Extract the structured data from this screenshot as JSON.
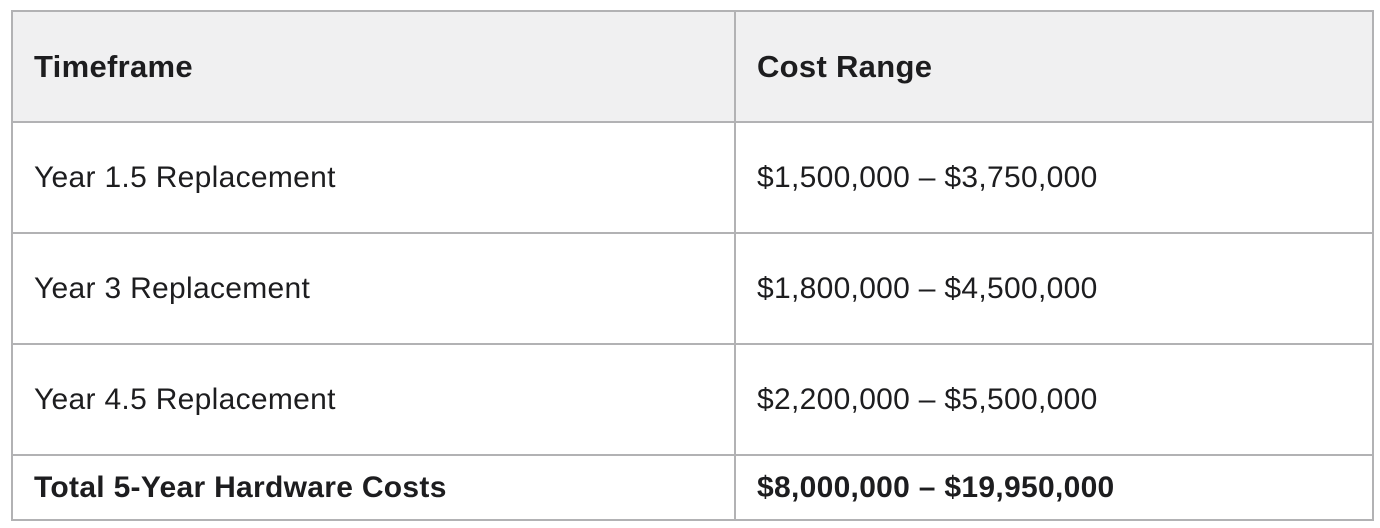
{
  "table": {
    "columns": [
      {
        "label": "Timeframe"
      },
      {
        "label": "Cost Range"
      }
    ],
    "rows": [
      {
        "timeframe": "Year 1.5 Replacement",
        "cost_range": "$1,500,000 – $3,750,000",
        "bold": false
      },
      {
        "timeframe": "Year 3 Replacement",
        "cost_range": "$1,800,000 – $4,500,000",
        "bold": false
      },
      {
        "timeframe": "Year 4.5 Replacement",
        "cost_range": "$2,200,000 – $5,500,000",
        "bold": false
      },
      {
        "timeframe": "Total 5-Year Hardware Costs",
        "cost_range": "$8,000,000 – $19,950,000",
        "bold": true
      }
    ],
    "colors": {
      "border": "#b2b2b4",
      "header_background": "#f0f0f1",
      "row_background": "#ffffff",
      "text": "#1d1d1f"
    }
  },
  "chart_data": {
    "type": "table",
    "title": "",
    "columns": [
      "Timeframe",
      "Cost Range"
    ],
    "rows": [
      [
        "Year 1.5 Replacement",
        "$1,500,000 – $3,750,000"
      ],
      [
        "Year 3 Replacement",
        "$1,800,000 – $4,500,000"
      ],
      [
        "Year 4.5 Replacement",
        "$2,200,000 – $5,500,000"
      ],
      [
        "Total 5-Year Hardware Costs",
        "$8,000,000 – $19,950,000"
      ]
    ],
    "cost_ranges_numeric": [
      {
        "label": "Year 1.5 Replacement",
        "low": 1500000,
        "high": 3750000
      },
      {
        "label": "Year 3 Replacement",
        "low": 1800000,
        "high": 4500000
      },
      {
        "label": "Year 4.5 Replacement",
        "low": 2200000,
        "high": 5500000
      },
      {
        "label": "Total 5-Year Hardware Costs",
        "low": 8000000,
        "high": 19950000
      }
    ]
  }
}
